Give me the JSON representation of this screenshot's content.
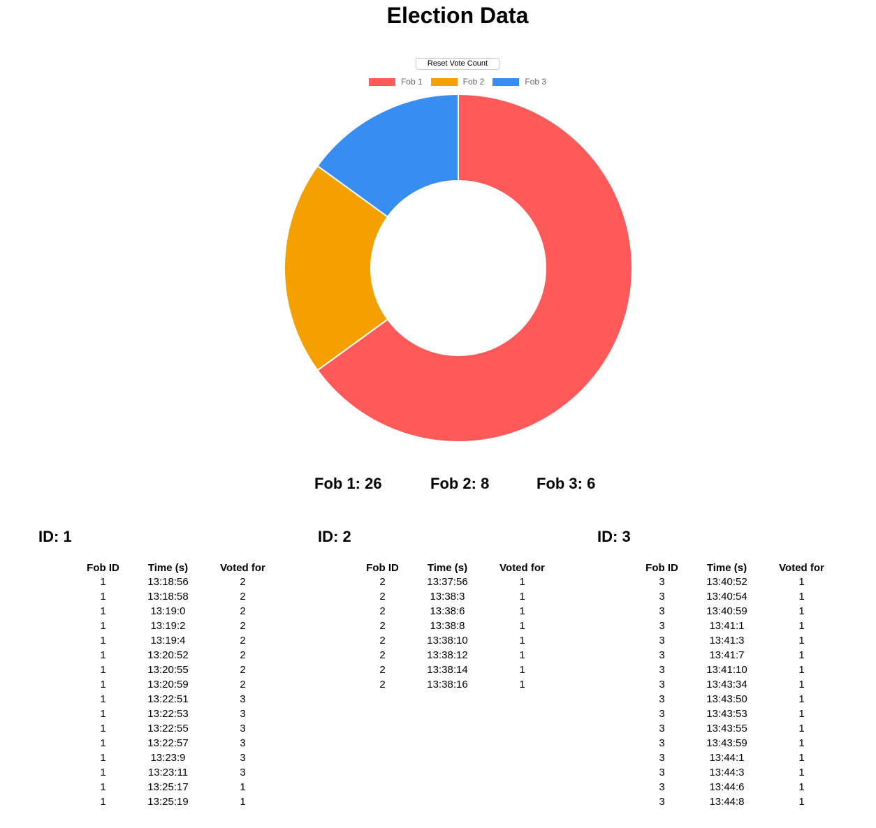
{
  "page": {
    "title": "Election Data",
    "reset_button": "Reset Vote Count"
  },
  "chart_data": {
    "type": "pie",
    "variant": "doughnut",
    "categories": [
      "Fob 1",
      "Fob 2",
      "Fob 3"
    ],
    "values": [
      26,
      8,
      6
    ],
    "colors": [
      "#ff5959",
      "#f4a100",
      "#388ef0"
    ],
    "legend": "top",
    "title": ""
  },
  "totals": [
    {
      "label": "Fob 1: 26"
    },
    {
      "label": "Fob 2: 8"
    },
    {
      "label": "Fob 3: 6"
    }
  ],
  "tables": [
    {
      "heading": "ID: 1",
      "columns": [
        "Fob ID",
        "Time (s)",
        "Voted for"
      ],
      "rows": [
        [
          "1",
          "13:18:56",
          "2"
        ],
        [
          "1",
          "13:18:58",
          "2"
        ],
        [
          "1",
          "13:19:0",
          "2"
        ],
        [
          "1",
          "13:19:2",
          "2"
        ],
        [
          "1",
          "13:19:4",
          "2"
        ],
        [
          "1",
          "13:20:52",
          "2"
        ],
        [
          "1",
          "13:20:55",
          "2"
        ],
        [
          "1",
          "13:20:59",
          "2"
        ],
        [
          "1",
          "13:22:51",
          "3"
        ],
        [
          "1",
          "13:22:53",
          "3"
        ],
        [
          "1",
          "13:22:55",
          "3"
        ],
        [
          "1",
          "13:22:57",
          "3"
        ],
        [
          "1",
          "13:23:9",
          "3"
        ],
        [
          "1",
          "13:23:11",
          "3"
        ],
        [
          "1",
          "13:25:17",
          "1"
        ],
        [
          "1",
          "13:25:19",
          "1"
        ]
      ]
    },
    {
      "heading": "ID: 2",
      "columns": [
        "Fob ID",
        "Time (s)",
        "Voted for"
      ],
      "rows": [
        [
          "2",
          "13:37:56",
          "1"
        ],
        [
          "2",
          "13:38:3",
          "1"
        ],
        [
          "2",
          "13:38:6",
          "1"
        ],
        [
          "2",
          "13:38:8",
          "1"
        ],
        [
          "2",
          "13:38:10",
          "1"
        ],
        [
          "2",
          "13:38:12",
          "1"
        ],
        [
          "2",
          "13:38:14",
          "1"
        ],
        [
          "2",
          "13:38:16",
          "1"
        ]
      ]
    },
    {
      "heading": "ID: 3",
      "columns": [
        "Fob ID",
        "Time (s)",
        "Voted for"
      ],
      "rows": [
        [
          "3",
          "13:40:52",
          "1"
        ],
        [
          "3",
          "13:40:54",
          "1"
        ],
        [
          "3",
          "13:40:59",
          "1"
        ],
        [
          "3",
          "13:41:1",
          "1"
        ],
        [
          "3",
          "13:41:3",
          "1"
        ],
        [
          "3",
          "13:41:7",
          "1"
        ],
        [
          "3",
          "13:41:10",
          "1"
        ],
        [
          "3",
          "13:43:34",
          "1"
        ],
        [
          "3",
          "13:43:50",
          "1"
        ],
        [
          "3",
          "13:43:53",
          "1"
        ],
        [
          "3",
          "13:43:55",
          "1"
        ],
        [
          "3",
          "13:43:59",
          "1"
        ],
        [
          "3",
          "13:44:1",
          "1"
        ],
        [
          "3",
          "13:44:3",
          "1"
        ],
        [
          "3",
          "13:44:6",
          "1"
        ],
        [
          "3",
          "13:44:8",
          "1"
        ]
      ]
    }
  ]
}
